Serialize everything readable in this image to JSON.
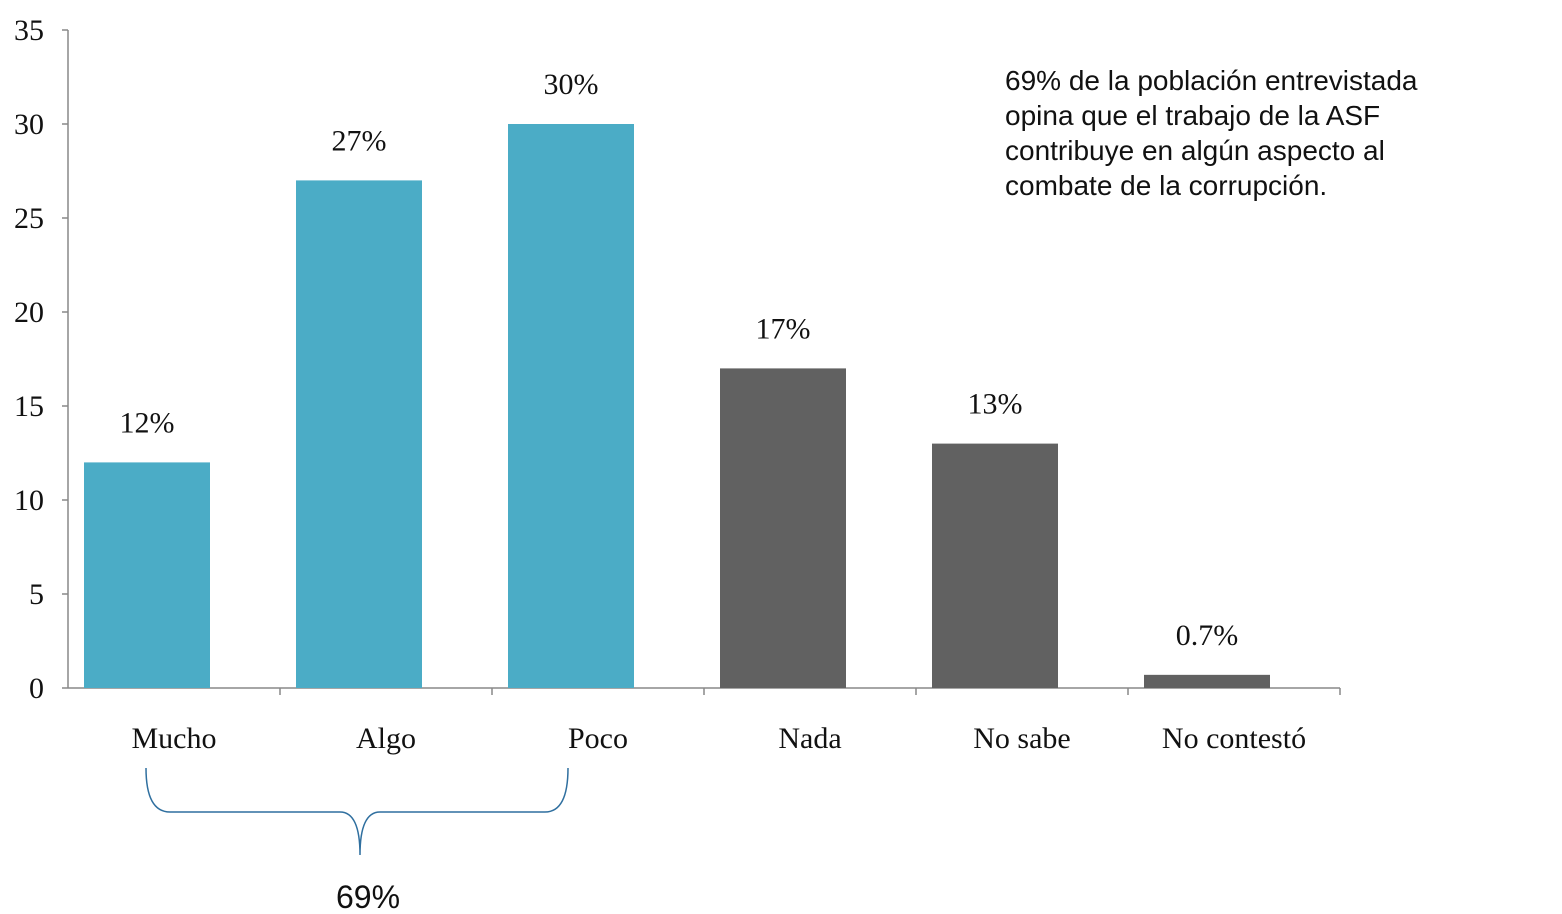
{
  "chart_data": {
    "type": "bar",
    "categories": [
      "Mucho",
      "Algo",
      "Poco",
      "Nada",
      "No sabe",
      "No contestó"
    ],
    "values": [
      12,
      27,
      30,
      17,
      13,
      0.7
    ],
    "value_labels": [
      "12%",
      "27%",
      "30%",
      "17%",
      "13%",
      "0.7%"
    ],
    "colors": [
      "#4bacc6",
      "#4bacc6",
      "#4bacc6",
      "#616161",
      "#616161",
      "#616161"
    ],
    "ylim": [
      0,
      35
    ],
    "yticks": [
      0,
      5,
      10,
      15,
      20,
      25,
      30,
      35
    ],
    "annotation_lines": [
      "69% de la población entrevistada",
      "opina que el trabajo de la ASF",
      "contribuye en algún aspecto al",
      "combate de la corrupción."
    ],
    "brace_label": "69%"
  }
}
